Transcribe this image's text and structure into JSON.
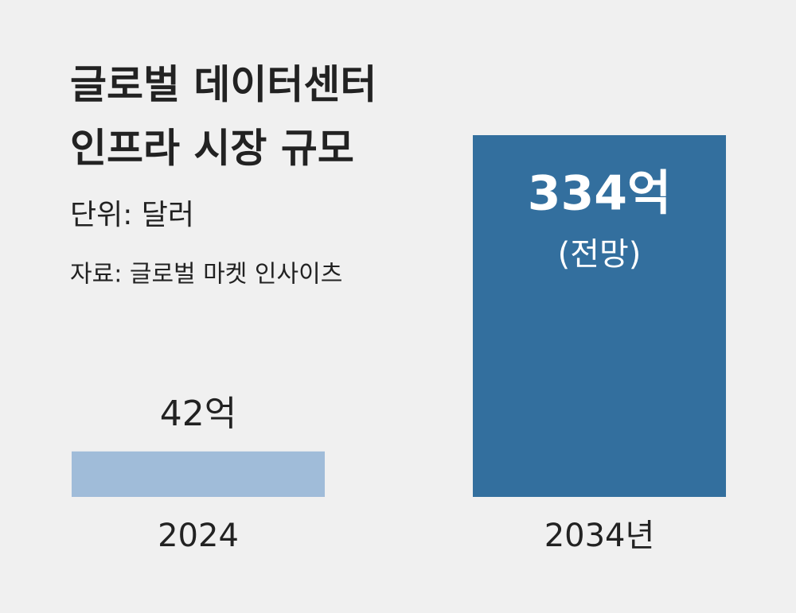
{
  "chart_data": {
    "type": "bar",
    "title": [
      "글로벌 데이터센터",
      "인프라 시장 규모"
    ],
    "subtitle": "단위: 달러",
    "source": "자료: 글로벌 마켓 인사이츠",
    "categories": [
      "2024",
      "2034년"
    ],
    "values": [
      42,
      334
    ],
    "value_labels": [
      "42억",
      "334억"
    ],
    "colors": [
      "#a0bcd9",
      "#336f9e"
    ],
    "annotation": "(전망)"
  }
}
